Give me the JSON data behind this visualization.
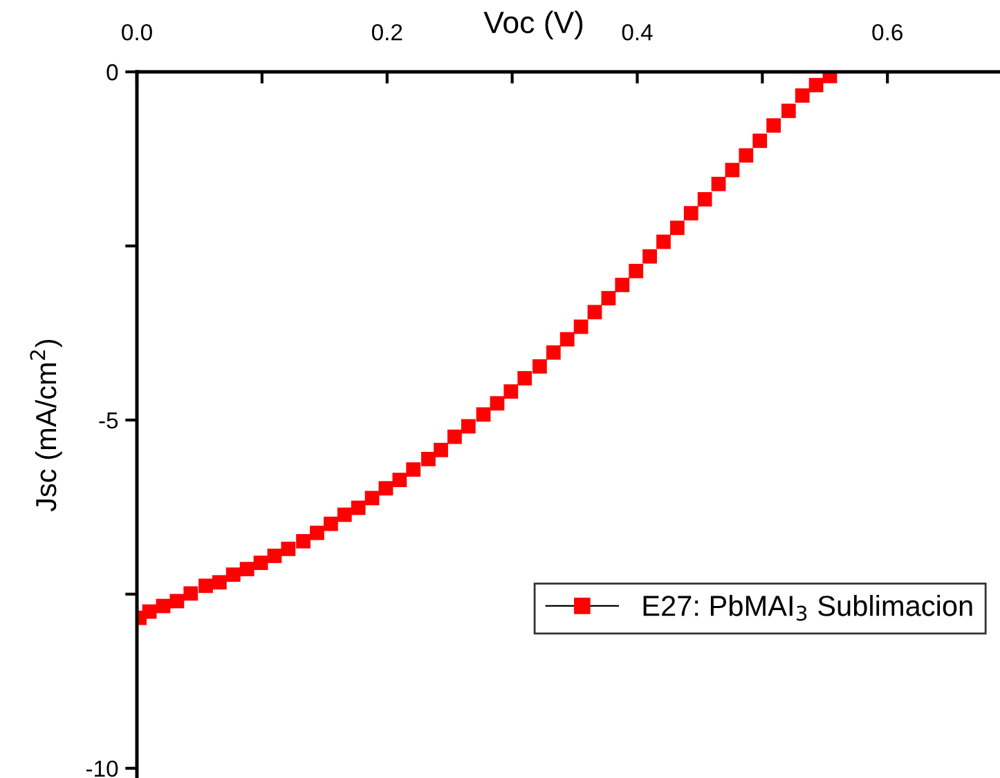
{
  "chart_data": {
    "type": "scatter",
    "xlabel": "Voc (V)",
    "ylabel": "Jsc (mA/cm$^{2}$)",
    "xlim": [
      0,
      0.69
    ],
    "ylim": [
      -10.14,
      0
    ],
    "xticks": [
      {
        "value": 0,
        "label": "0.0"
      },
      {
        "value": 0.1,
        "label": null
      },
      0.2,
      {
        "value": 0.3,
        "label": null
      },
      0.4,
      {
        "value": 0.5,
        "label": null
      },
      0.6
    ],
    "yticks": [
      0,
      {
        "value": -2.5,
        "label": null
      },
      -5,
      {
        "value": -7.5,
        "label": null
      },
      -10
    ],
    "grid": false,
    "legend": "right",
    "marker": "square",
    "series": [
      {
        "name": "E27: PbMAI$_{3}$ Sublimacion",
        "color": "#ff0000",
        "x": [
          0.002,
          0.01,
          0.021,
          0.032,
          0.043,
          0.055,
          0.066,
          0.077,
          0.088,
          0.099,
          0.11,
          0.121,
          0.133,
          0.144,
          0.155,
          0.166,
          0.177,
          0.188,
          0.199,
          0.21,
          0.221,
          0.233,
          0.243,
          0.254,
          0.265,
          0.277,
          0.288,
          0.299,
          0.31,
          0.322,
          0.333,
          0.344,
          0.355,
          0.366,
          0.377,
          0.388,
          0.399,
          0.41,
          0.421,
          0.432,
          0.443,
          0.454,
          0.465,
          0.476,
          0.487,
          0.498,
          0.509,
          0.521,
          0.532,
          0.543,
          0.554
        ],
        "values": [
          -7.84,
          -7.75,
          -7.67,
          -7.6,
          -7.49,
          -7.38,
          -7.33,
          -7.22,
          -7.14,
          -7.05,
          -6.95,
          -6.85,
          -6.74,
          -6.62,
          -6.49,
          -6.36,
          -6.26,
          -6.12,
          -5.98,
          -5.86,
          -5.71,
          -5.56,
          -5.43,
          -5.24,
          -5.09,
          -4.92,
          -4.76,
          -4.59,
          -4.4,
          -4.23,
          -4.03,
          -3.84,
          -3.66,
          -3.45,
          -3.25,
          -3.06,
          -2.86,
          -2.65,
          -2.44,
          -2.24,
          -2.03,
          -1.83,
          -1.61,
          -1.41,
          -1.2,
          -0.99,
          -0.77,
          -0.56,
          -0.34,
          -0.19,
          -0.06
        ]
      }
    ]
  }
}
